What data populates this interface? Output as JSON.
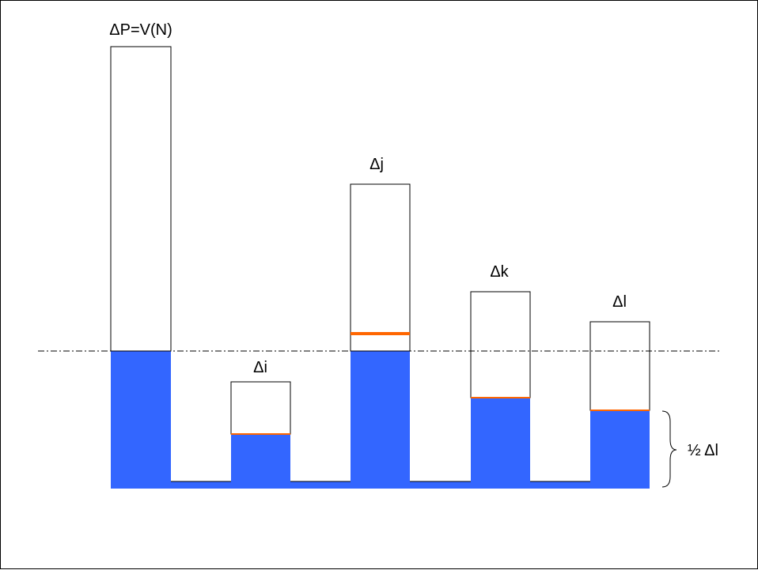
{
  "colors": {
    "fill": "#3366ff",
    "marker": "#ff6600",
    "outline": "#000000",
    "reference_line": "#000000"
  },
  "columns": [
    {
      "label": "ΔP=V(N)"
    },
    {
      "label": "Δi"
    },
    {
      "label": "Δj"
    },
    {
      "label": "Δk"
    },
    {
      "label": "Δl"
    }
  ],
  "bracket_label": "½ Δl"
}
